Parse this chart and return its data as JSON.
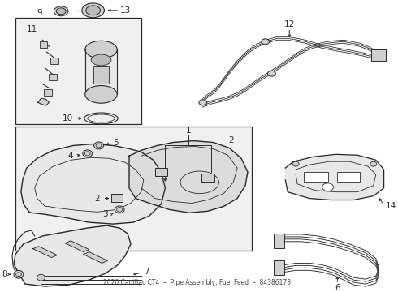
{
  "bg_color": "#ffffff",
  "line_color": "#2a2a2a",
  "fill_light": "#e8e8e8",
  "fill_med": "#d0d0d0",
  "fig_width": 4.9,
  "fig_height": 3.6,
  "dpi": 100,
  "title_text": "2020 Cadillac CT4  –  Pipe Assembly, Fuel Feed  –  84386173"
}
